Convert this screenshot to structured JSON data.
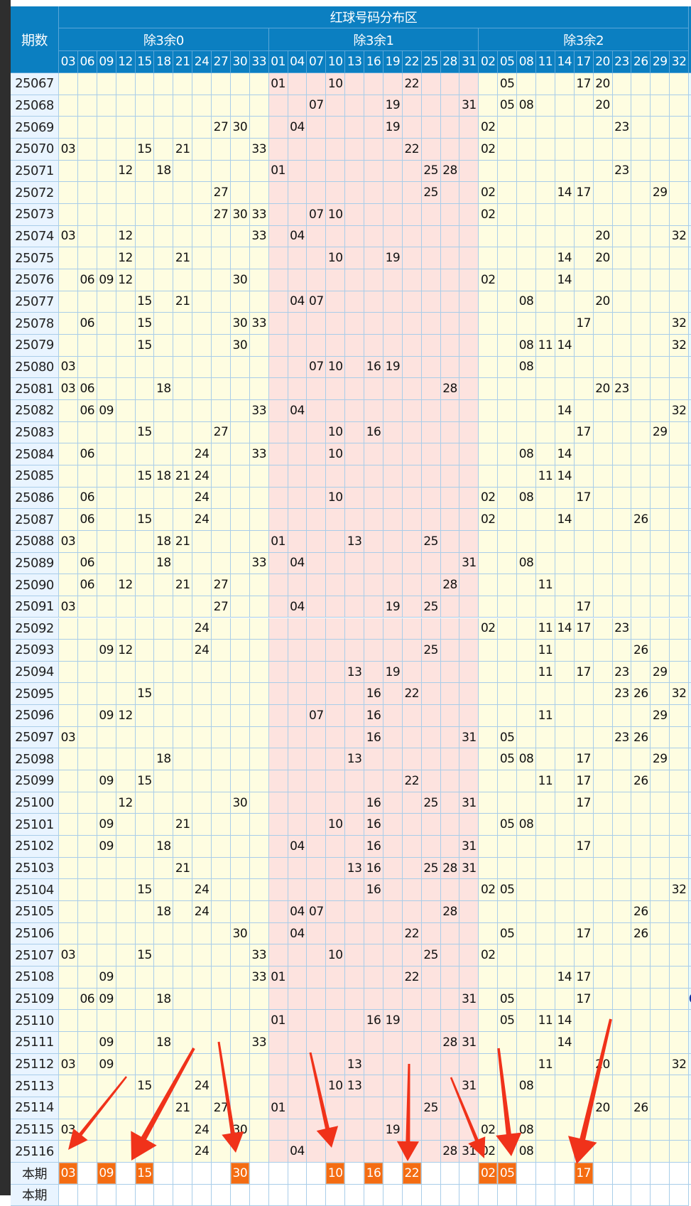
{
  "header": {
    "period_label": "期数",
    "title": "红球号码分布区",
    "groups": [
      {
        "label": "除3余0",
        "numbers": [
          "03",
          "06",
          "09",
          "12",
          "15",
          "18",
          "21",
          "24",
          "27",
          "30",
          "33"
        ]
      },
      {
        "label": "除3余1",
        "numbers": [
          "01",
          "04",
          "07",
          "10",
          "13",
          "16",
          "19",
          "22",
          "25",
          "28",
          "31"
        ]
      },
      {
        "label": "除3余2",
        "numbers": [
          "02",
          "05",
          "08",
          "11",
          "14",
          "17",
          "20",
          "23",
          "26",
          "29",
          "32"
        ]
      }
    ]
  },
  "rows": [
    {
      "period": "25067",
      "nums": [
        "01",
        "10",
        "22",
        "05",
        "17",
        "20"
      ]
    },
    {
      "period": "25068",
      "nums": [
        "07",
        "19",
        "31",
        "05",
        "08",
        "20"
      ]
    },
    {
      "period": "25069",
      "nums": [
        "27",
        "30",
        "04",
        "19",
        "02",
        "23"
      ]
    },
    {
      "period": "25070",
      "nums": [
        "03",
        "15",
        "21",
        "33",
        "22",
        "02"
      ]
    },
    {
      "period": "25071",
      "nums": [
        "12",
        "18",
        "01",
        "25",
        "28",
        "23"
      ]
    },
    {
      "period": "25072",
      "nums": [
        "27",
        "25",
        "02",
        "14",
        "17",
        "29"
      ]
    },
    {
      "period": "25073",
      "nums": [
        "27",
        "30",
        "33",
        "07",
        "10",
        "02"
      ]
    },
    {
      "period": "25074",
      "nums": [
        "03",
        "12",
        "33",
        "04",
        "20",
        "32"
      ]
    },
    {
      "period": "25075",
      "nums": [
        "12",
        "21",
        "10",
        "19",
        "14",
        "20"
      ]
    },
    {
      "period": "25076",
      "nums": [
        "06",
        "09",
        "12",
        "30",
        "02",
        "14"
      ]
    },
    {
      "period": "25077",
      "nums": [
        "15",
        "21",
        "04",
        "07",
        "08",
        "20"
      ]
    },
    {
      "period": "25078",
      "nums": [
        "06",
        "15",
        "30",
        "33",
        "17",
        "32"
      ]
    },
    {
      "period": "25079",
      "nums": [
        "15",
        "30",
        "08",
        "11",
        "14",
        "32"
      ]
    },
    {
      "period": "25080",
      "nums": [
        "03",
        "07",
        "10",
        "16",
        "19",
        "08"
      ]
    },
    {
      "period": "25081",
      "nums": [
        "03",
        "06",
        "18",
        "28",
        "20",
        "23"
      ]
    },
    {
      "period": "25082",
      "nums": [
        "06",
        "09",
        "33",
        "04",
        "14",
        "32"
      ]
    },
    {
      "period": "25083",
      "nums": [
        "15",
        "27",
        "10",
        "16",
        "17",
        "29"
      ]
    },
    {
      "period": "25084",
      "nums": [
        "06",
        "24",
        "33",
        "10",
        "08",
        "14"
      ]
    },
    {
      "period": "25085",
      "nums": [
        "15",
        "18",
        "21",
        "24",
        "11",
        "14"
      ]
    },
    {
      "period": "25086",
      "nums": [
        "06",
        "24",
        "10",
        "02",
        "08",
        "17"
      ]
    },
    {
      "period": "25087",
      "nums": [
        "06",
        "15",
        "24",
        "02",
        "14",
        "26"
      ]
    },
    {
      "period": "25088",
      "nums": [
        "03",
        "18",
        "21",
        "01",
        "13",
        "25"
      ]
    },
    {
      "period": "25089",
      "nums": [
        "06",
        "18",
        "33",
        "04",
        "31",
        "08"
      ]
    },
    {
      "period": "25090",
      "nums": [
        "06",
        "12",
        "21",
        "27",
        "28",
        "11"
      ]
    },
    {
      "period": "25091",
      "nums": [
        "03",
        "27",
        "04",
        "19",
        "25",
        "17"
      ]
    },
    {
      "period": "25092",
      "nums": [
        "24",
        "02",
        "11",
        "14",
        "17",
        "23"
      ]
    },
    {
      "period": "25093",
      "nums": [
        "09",
        "12",
        "24",
        "25",
        "11",
        "26"
      ]
    },
    {
      "period": "25094",
      "nums": [
        "13",
        "19",
        "11",
        "17",
        "23",
        "29"
      ]
    },
    {
      "period": "25095",
      "nums": [
        "15",
        "16",
        "22",
        "23",
        "26",
        "32"
      ]
    },
    {
      "period": "25096",
      "nums": [
        "09",
        "12",
        "07",
        "16",
        "11",
        "29"
      ]
    },
    {
      "period": "25097",
      "nums": [
        "03",
        "16",
        "31",
        "05",
        "23",
        "26"
      ]
    },
    {
      "period": "25098",
      "nums": [
        "18",
        "13",
        "05",
        "08",
        "17",
        "29"
      ]
    },
    {
      "period": "25099",
      "nums": [
        "09",
        "15",
        "22",
        "11",
        "17",
        "26"
      ]
    },
    {
      "period": "25100",
      "nums": [
        "12",
        "30",
        "16",
        "25",
        "31",
        "17"
      ]
    },
    {
      "period": "25101",
      "nums": [
        "09",
        "21",
        "10",
        "16",
        "05",
        "08"
      ]
    },
    {
      "period": "25102",
      "nums": [
        "09",
        "18",
        "04",
        "16",
        "31",
        "17"
      ]
    },
    {
      "period": "25103",
      "nums": [
        "21",
        "13",
        "16",
        "25",
        "28",
        "31"
      ]
    },
    {
      "period": "25104",
      "nums": [
        "15",
        "24",
        "16",
        "02",
        "05",
        "32"
      ]
    },
    {
      "period": "25105",
      "nums": [
        "18",
        "24",
        "04",
        "07",
        "28",
        "26"
      ]
    },
    {
      "period": "25106",
      "nums": [
        "30",
        "04",
        "22",
        "05",
        "17",
        "26"
      ]
    },
    {
      "period": "25107",
      "nums": [
        "03",
        "15",
        "33",
        "10",
        "25",
        "02"
      ]
    },
    {
      "period": "25108",
      "nums": [
        "09",
        "33",
        "01",
        "22",
        "14",
        "17"
      ]
    },
    {
      "period": "25109",
      "nums": [
        "06",
        "09",
        "18",
        "31",
        "05",
        "17"
      ],
      "extra": "0"
    },
    {
      "period": "25110",
      "nums": [
        "01",
        "16",
        "19",
        "05",
        "11",
        "14"
      ]
    },
    {
      "period": "25111",
      "nums": [
        "09",
        "18",
        "33",
        "28",
        "31",
        "14"
      ]
    },
    {
      "period": "25112",
      "nums": [
        "03",
        "09",
        "13",
        "11",
        "20",
        "32"
      ]
    },
    {
      "period": "25113",
      "nums": [
        "15",
        "24",
        "10",
        "13",
        "31",
        "08"
      ]
    },
    {
      "period": "25114",
      "nums": [
        "21",
        "27",
        "01",
        "25",
        "20",
        "26"
      ]
    },
    {
      "period": "25115",
      "nums": [
        "03",
        "24",
        "30",
        "19",
        "02",
        "08"
      ]
    },
    {
      "period": "25116",
      "nums": [
        "24",
        "04",
        "28",
        "31",
        "02",
        "08"
      ]
    }
  ],
  "current": {
    "label": "本期",
    "selected": [
      "03",
      "09",
      "15",
      "30",
      "10",
      "16",
      "22",
      "02",
      "05",
      "17"
    ]
  },
  "current2": {
    "label": "本期"
  },
  "colors": {
    "header": "#0b7fc1",
    "mod0": "#fefde1",
    "mod1": "#fde3df",
    "mod2": "#fefde1",
    "selected": "#f46c12",
    "arrow": "#f0321a",
    "grid": "#a9cde9"
  }
}
